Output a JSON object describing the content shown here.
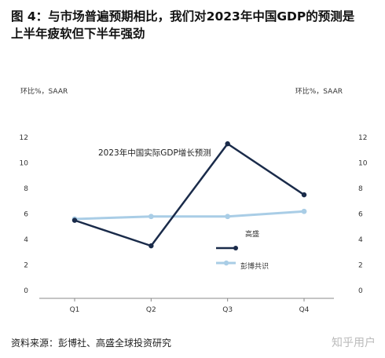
{
  "figure": {
    "title_line1": "图 4：与市场普遍预期相比，我们对2023年中国GDP的预测是",
    "title_line2": "上半年疲软但下半年强劲",
    "source": "资料来源：彭博社、高盛全球投资研究",
    "watermark": "知乎用户"
  },
  "chart_data": {
    "type": "line",
    "title": "2023年中国实际GDP增长预测",
    "left_axis_label": "环比%，SAAR",
    "right_axis_label": "环比%，SAAR",
    "categories": [
      "Q1",
      "Q2",
      "Q3",
      "Q4"
    ],
    "ylim": [
      0,
      12
    ],
    "yticks": [
      0,
      2,
      4,
      6,
      8,
      10,
      12
    ],
    "grid": false,
    "legend_position": "center-right",
    "series": [
      {
        "name": "高盛",
        "values": [
          5.5,
          3.5,
          11.5,
          7.5
        ],
        "color": "#1a2b4a"
      },
      {
        "name": "彭博共识",
        "values": [
          5.6,
          5.8,
          5.8,
          6.2
        ],
        "color": "#a9cde6"
      }
    ]
  }
}
